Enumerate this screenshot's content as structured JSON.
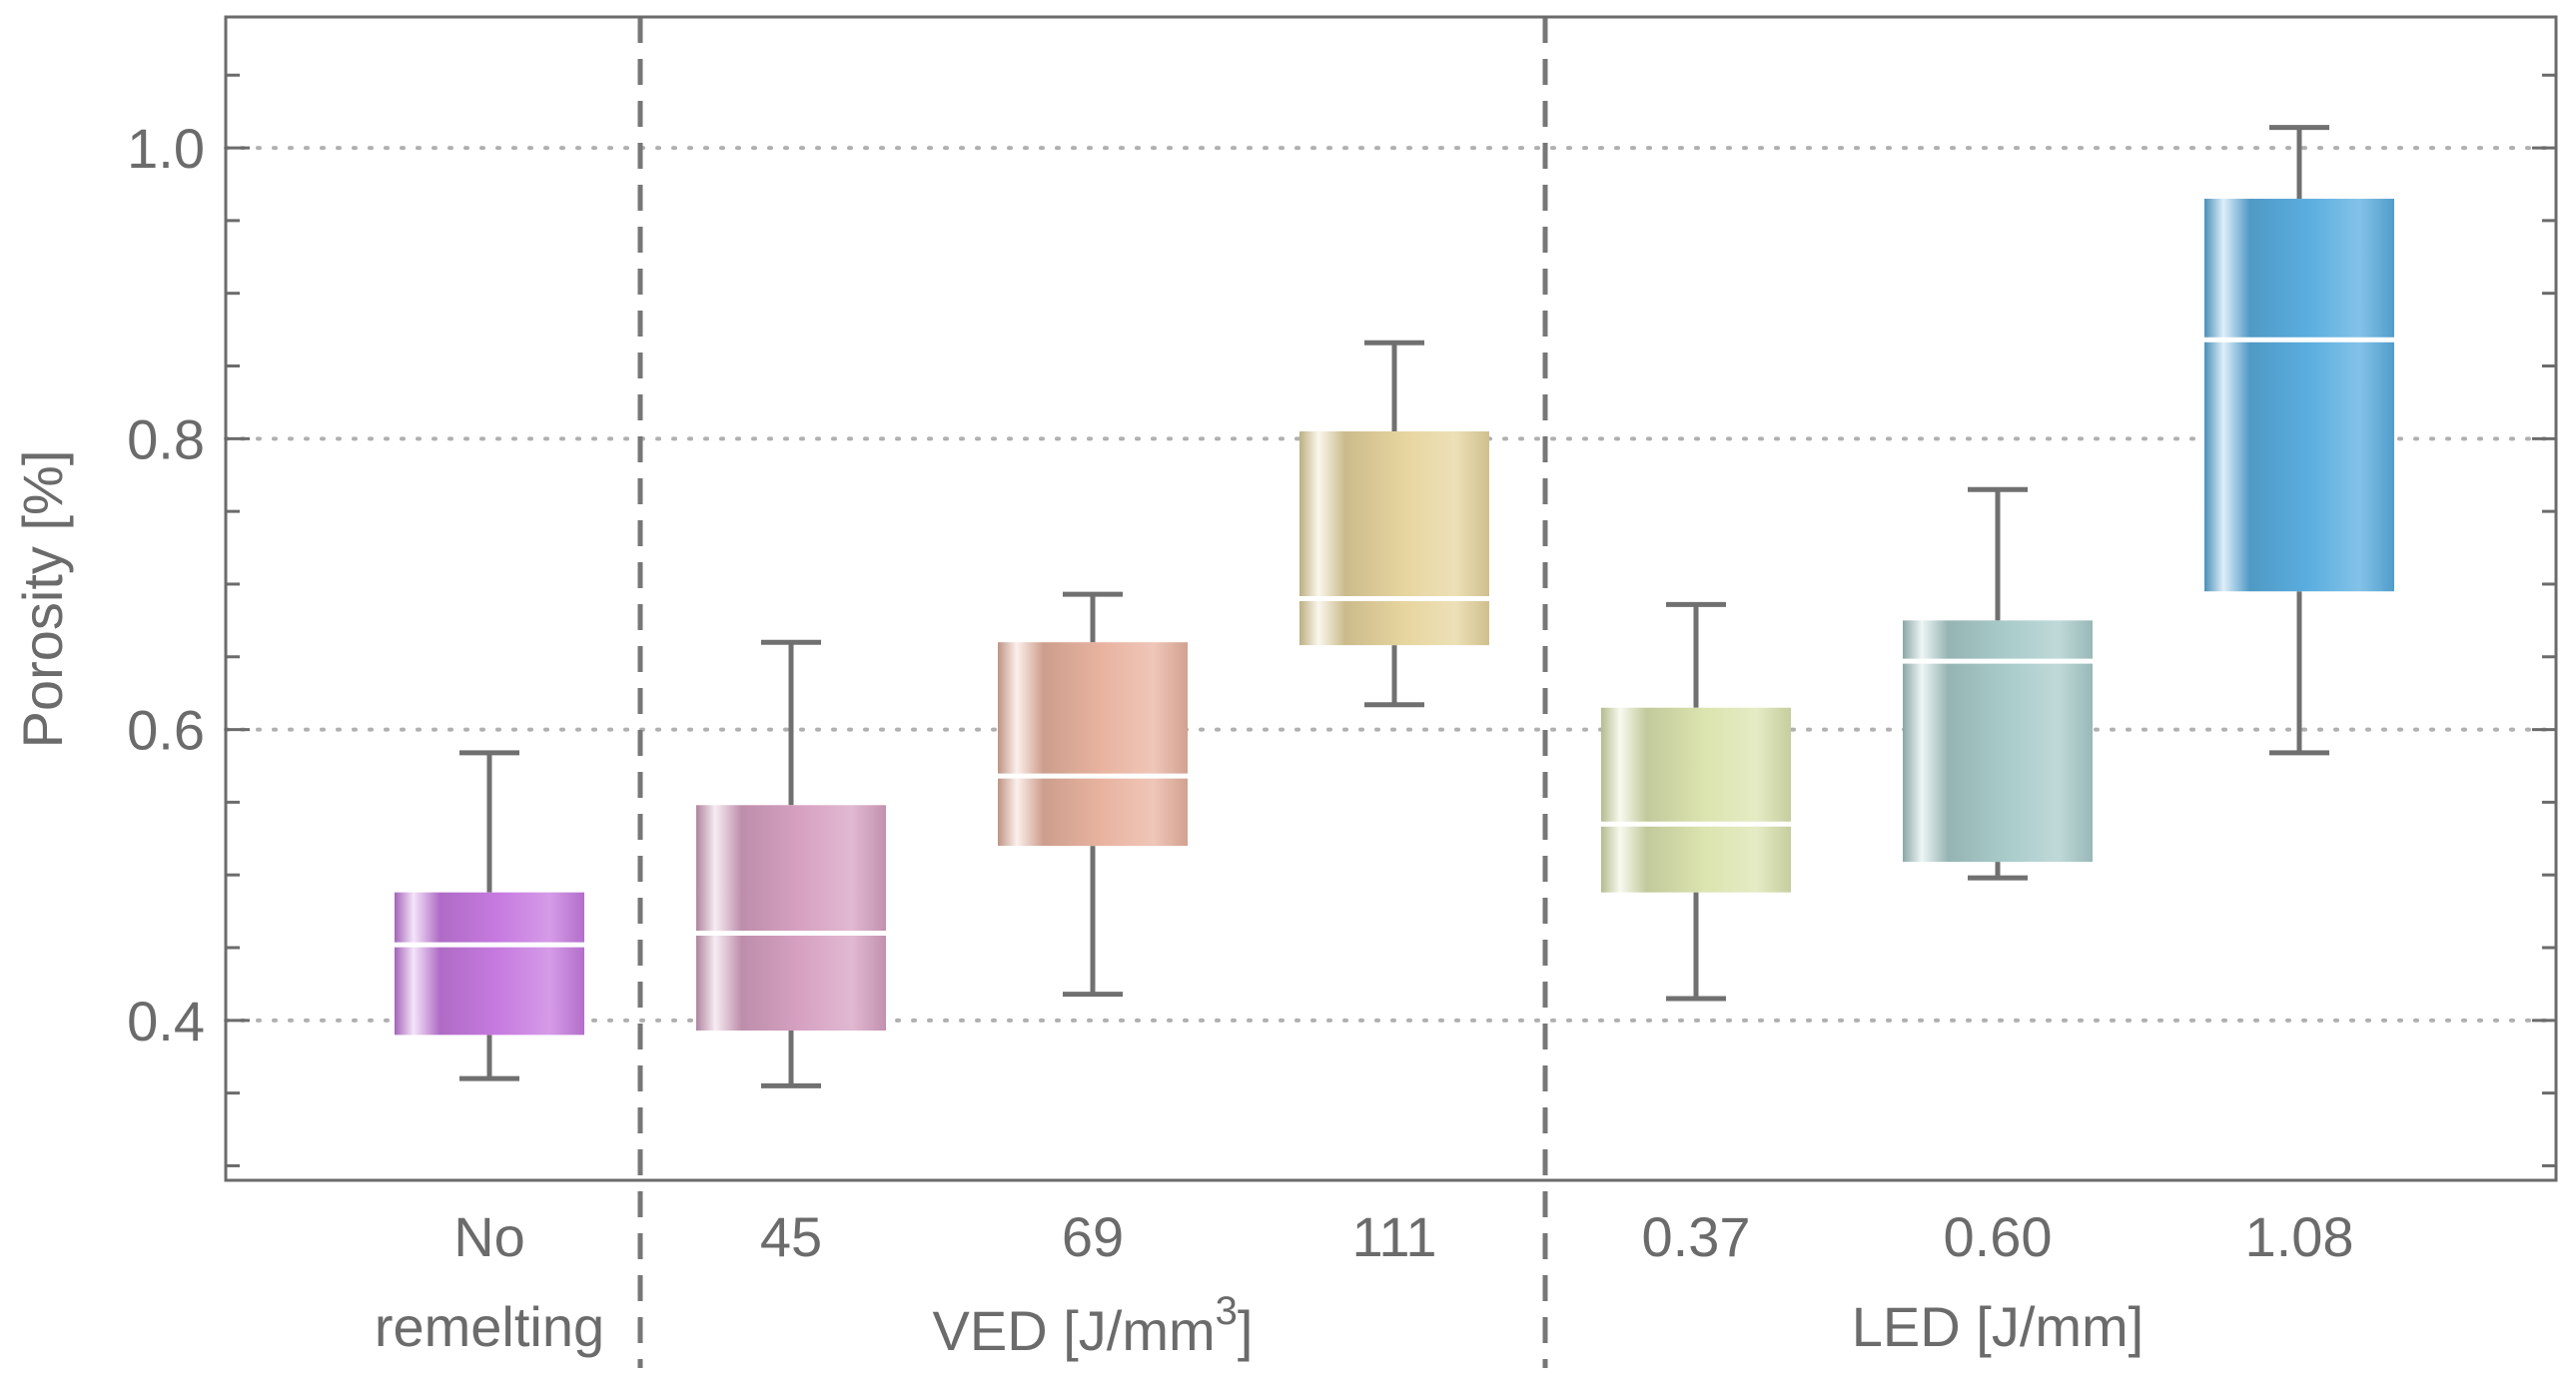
{
  "chart_data": {
    "type": "box",
    "title": "",
    "ylabel": "Porosity [%]",
    "ylim": [
      0.29,
      1.09
    ],
    "yticks": [
      0.4,
      0.6,
      0.8,
      1.0
    ],
    "ytick_labels": [
      "0.4",
      "0.6",
      "0.8",
      "1.0"
    ],
    "grid": "horizontal-dotted",
    "categories": [
      {
        "label": "No",
        "label2": "remelting",
        "group": "none",
        "color": "#c77ae0",
        "min": 0.36,
        "q1": 0.39,
        "median": 0.452,
        "q3": 0.488,
        "max": 0.584
      },
      {
        "label": "45",
        "group": "VED",
        "color": "#d7a1c2",
        "min": 0.355,
        "q1": 0.393,
        "median": 0.46,
        "q3": 0.548,
        "max": 0.66
      },
      {
        "label": "69",
        "group": "VED",
        "color": "#e9b3a0",
        "min": 0.418,
        "q1": 0.52,
        "median": 0.568,
        "q3": 0.66,
        "max": 0.693
      },
      {
        "label": "111",
        "group": "VED",
        "color": "#e7d59f",
        "min": 0.617,
        "q1": 0.658,
        "median": 0.69,
        "q3": 0.805,
        "max": 0.866
      },
      {
        "label": "0.37",
        "group": "LED",
        "color": "#dce4b0",
        "min": 0.415,
        "q1": 0.488,
        "median": 0.535,
        "q3": 0.615,
        "max": 0.686
      },
      {
        "label": "0.60",
        "group": "LED",
        "color": "#a9cccb",
        "min": 0.498,
        "q1": 0.509,
        "median": 0.647,
        "q3": 0.675,
        "max": 0.765
      },
      {
        "label": "1.08",
        "group": "LED",
        "color": "#5aaee0",
        "min": 0.584,
        "q1": 0.695,
        "median": 0.868,
        "q3": 0.965,
        "max": 1.014
      }
    ],
    "group_labels": {
      "VED": {
        "text": "VED [J/mm",
        "sup": "3",
        "tail": "]"
      },
      "LED": {
        "text": "LED [J/mm]"
      }
    },
    "separators_after_index": [
      0,
      3
    ]
  },
  "colors": {
    "axis": "#6b6b6b",
    "grid": "#b0b0b0",
    "whisker": "#707070",
    "median": "#ffffff"
  }
}
